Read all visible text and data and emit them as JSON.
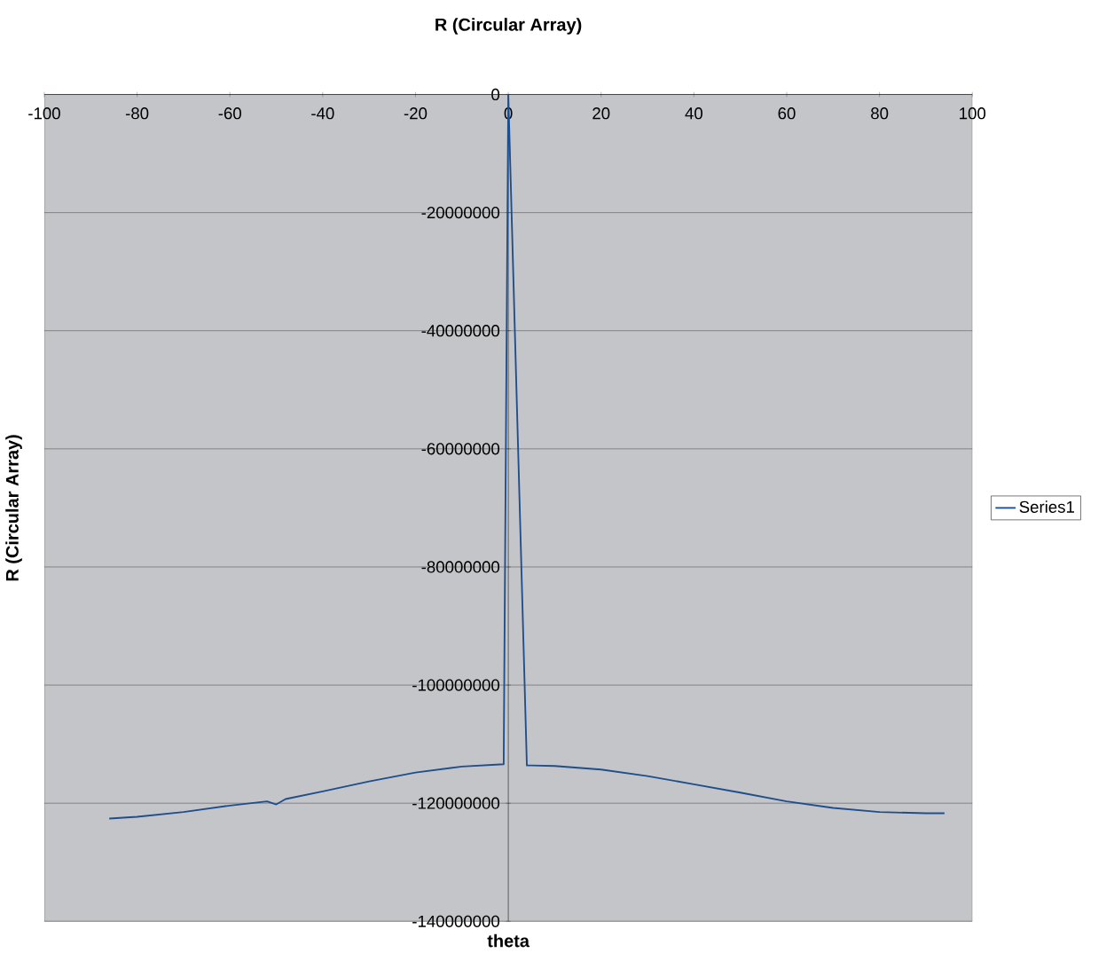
{
  "chart_data": {
    "type": "line",
    "title": "R (Circular Array)",
    "xlabel": "theta",
    "ylabel": "R (Circular Array)",
    "x": [
      -86,
      -80,
      -70,
      -60,
      -52,
      -50,
      -48,
      -40,
      -30,
      -20,
      -10,
      -1,
      0,
      4,
      5,
      10,
      20,
      30,
      40,
      50,
      60,
      70,
      80,
      90,
      94
    ],
    "series": [
      {
        "name": "Series1",
        "color": "#1f4e8c",
        "values": [
          -122600000,
          -122300000,
          -121500000,
          -120400000,
          -119700000,
          -120200000,
          -119300000,
          -118000000,
          -116300000,
          -114800000,
          -113800000,
          -113400000,
          0,
          -113600000,
          -113600000,
          -113700000,
          -114300000,
          -115400000,
          -116800000,
          -118200000,
          -119700000,
          -120800000,
          -121500000,
          -121700000,
          -121700000
        ]
      }
    ],
    "xlim": [
      -100,
      100
    ],
    "xticks": [
      -100,
      -80,
      -60,
      -40,
      -20,
      0,
      20,
      40,
      60,
      80,
      100
    ],
    "ylim": [
      -140000000,
      0
    ],
    "yticks": [
      -140000000,
      -120000000,
      -100000000,
      -80000000,
      -60000000,
      -40000000,
      -20000000,
      0
    ],
    "grid": "y",
    "legend": "right"
  }
}
